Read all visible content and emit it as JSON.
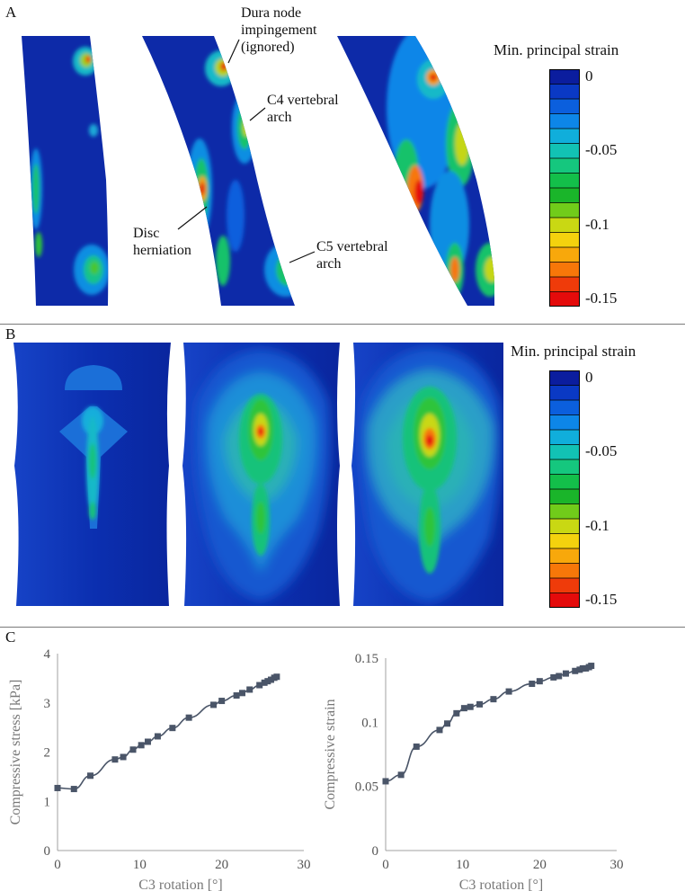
{
  "figure": {
    "panels": {
      "a": "A",
      "b": "B",
      "c": "C"
    },
    "panel_a": {
      "annotations": {
        "dura_node": [
          "Dura node",
          "impingement",
          "(ignored)"
        ],
        "c4_arch": [
          "C4 vertebral",
          "arch"
        ],
        "disc_herniation": [
          "Disc",
          "herniation"
        ],
        "c5_arch": [
          "C5 vertebral",
          "arch"
        ]
      }
    },
    "colorbar": {
      "title": "Min. principal strain",
      "ticks": [
        "0",
        "-0.05",
        "-0.1",
        "-0.15"
      ],
      "colors": [
        "#0b1d9e",
        "#0a39c4",
        "#0b5fdd",
        "#0d86e8",
        "#10aedb",
        "#12c2b4",
        "#15c77e",
        "#13bf4a",
        "#1ab52a",
        "#71cc1a",
        "#c9d813",
        "#f4d20e",
        "#f8a80b",
        "#f77709",
        "#ef3b0a",
        "#e40b0b"
      ]
    }
  },
  "chart_data": [
    {
      "type": "line",
      "xlabel": "C3 rotation [°]",
      "ylabel": "Compressive stress [kPa]",
      "xlim": [
        0,
        30
      ],
      "ylim": [
        0,
        4
      ],
      "xticks": [
        0,
        10,
        20,
        30
      ],
      "yticks": [
        0,
        1,
        2,
        3,
        4
      ],
      "grid": false,
      "marker": "square",
      "color": "#4a5568",
      "x": [
        0,
        2,
        4,
        7,
        8,
        9.2,
        10.2,
        11,
        12.2,
        14,
        16,
        19,
        20,
        21.8,
        22.5,
        23.4,
        24.6,
        25.2,
        25.6,
        26,
        26.4,
        26.7
      ],
      "y": [
        1.27,
        1.25,
        1.52,
        1.85,
        1.9,
        2.05,
        2.14,
        2.21,
        2.32,
        2.49,
        2.7,
        2.96,
        3.04,
        3.15,
        3.2,
        3.27,
        3.36,
        3.41,
        3.44,
        3.47,
        3.51,
        3.53
      ]
    },
    {
      "type": "line",
      "xlabel": "C3 rotation [°]",
      "ylabel": "Compressive strain",
      "xlim": [
        0,
        30
      ],
      "ylim": [
        0,
        0.15
      ],
      "xticks": [
        0,
        10,
        20,
        30
      ],
      "yticks": [
        0,
        0.05,
        0.1,
        0.15
      ],
      "grid": false,
      "marker": "square",
      "color": "#4a5568",
      "x": [
        0,
        2,
        4,
        7,
        8,
        9.2,
        10.2,
        11,
        12.2,
        14,
        16,
        19,
        20,
        21.8,
        22.5,
        23.4,
        24.6,
        25.2,
        25.6,
        26,
        26.4,
        26.7
      ],
      "y": [
        0.054,
        0.059,
        0.081,
        0.094,
        0.099,
        0.107,
        0.111,
        0.112,
        0.114,
        0.118,
        0.124,
        0.13,
        0.132,
        0.135,
        0.136,
        0.138,
        0.14,
        0.141,
        0.142,
        0.142,
        0.143,
        0.144
      ]
    }
  ]
}
